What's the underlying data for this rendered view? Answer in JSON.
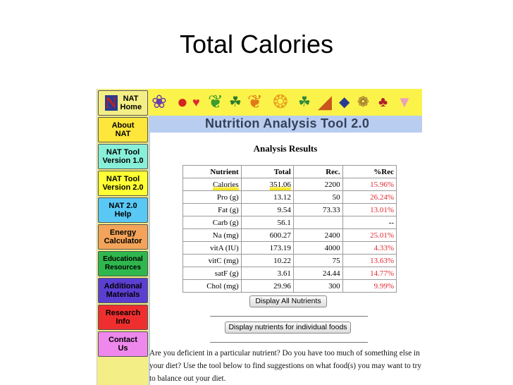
{
  "slide": {
    "title": "Total Calories"
  },
  "sidebar": {
    "items": [
      {
        "label": "NAT Home",
        "bg": "#f4ee86"
      },
      {
        "label": "About NAT",
        "bg": "#ffe63a"
      },
      {
        "label": "NAT Tool Version 1.0",
        "bg": "#88efd9"
      },
      {
        "label": "NAT Tool Version 2.0",
        "bg": "#ffff33"
      },
      {
        "label": "NAT 2.0 Help",
        "bg": "#59c8f5"
      },
      {
        "label": "Energy Calculator",
        "bg": "#f3a45a"
      },
      {
        "label": "Educational Resources",
        "bg": "#2fb74e"
      },
      {
        "label": "Additional Materials",
        "bg": "#5b3fd1"
      },
      {
        "label": "Research Info",
        "bg": "#ef2f2f"
      },
      {
        "label": "Contact Us",
        "bg": "#ee88ec"
      }
    ]
  },
  "header": {
    "tool_title": "Nutrition Analysis Tool 2.0"
  },
  "results": {
    "title": "Analysis Results",
    "columns": [
      "Nutrient",
      "Total",
      "Rec.",
      "%Rec"
    ],
    "rows": [
      [
        "Calories",
        "351.06",
        "2200",
        "15.96%"
      ],
      [
        "Pro (g)",
        "13.12",
        "50",
        "26.24%"
      ],
      [
        "Fat (g)",
        "9.54",
        "73.33",
        "13.01%"
      ],
      [
        "Carb (g)",
        "56.1",
        "",
        "--"
      ],
      [
        "Na (mg)",
        "600.27",
        "2400",
        "25.01%"
      ],
      [
        "vitA (IU)",
        "173.19",
        "4000",
        "4.33%"
      ],
      [
        "vitC (mg)",
        "10.22",
        "75",
        "13.63%"
      ],
      [
        "satF (g)",
        "3.61",
        "24.44",
        "14.77%"
      ],
      [
        "Chol (mg)",
        "29.96",
        "300",
        "9.99%"
      ]
    ],
    "highlight_color": "#f3e620",
    "percent_color": "#e0282f"
  },
  "buttons": {
    "display_all": "Display All Nutrients",
    "display_individual": "Display nutrients for individual foods"
  },
  "footer": {
    "text": "Are you deficient in a particular nutrient? Do you have too much of something else in your diet? Use the tool below to find suggestions on what food(s) you may want to try to balance out your diet."
  }
}
